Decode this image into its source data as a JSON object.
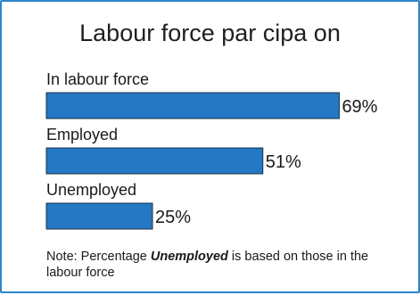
{
  "chart_data": {
    "type": "bar",
    "orientation": "horizontal",
    "title": "Labour force par  cipa  on",
    "categories": [
      "In labour force",
      "Employed",
      "Unemployed"
    ],
    "values": [
      69,
      51,
      25
    ],
    "value_labels": [
      "69%",
      "51%",
      "25%"
    ],
    "xlim": [
      0,
      100
    ],
    "xlabel": "",
    "ylabel": "",
    "grid": false,
    "bar_color": "#2478c4"
  },
  "note": {
    "prefix": "Note: Percentage ",
    "emphasis": "Unemployed",
    "suffix": " is based on those in the labour force"
  },
  "colors": {
    "border": "#2f86c8",
    "bar": "#2478c4",
    "bar_outline": "#1b2f45"
  }
}
